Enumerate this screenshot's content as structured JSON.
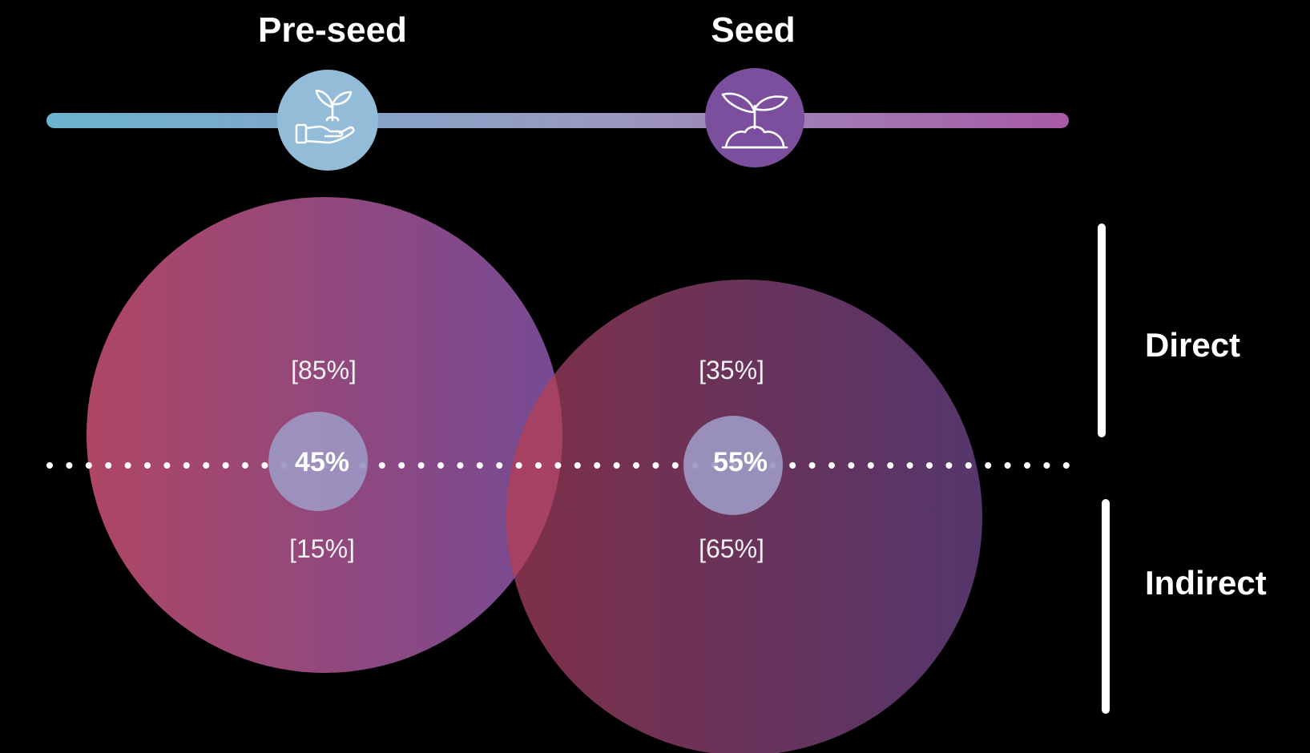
{
  "stages": [
    {
      "title": "Pre-seed",
      "icon": "hand-holding-plant-icon",
      "icon_color": "#93bcd9",
      "total": "45%",
      "direct": "[85%]",
      "indirect": "[15%]"
    },
    {
      "title": "Seed",
      "icon": "sprout-in-soil-icon",
      "icon_color": "#7b4f9e",
      "total": "55%",
      "direct": "[35%]",
      "indirect": "[65%]"
    }
  ],
  "side_labels": {
    "top": "Direct",
    "bottom": "Indirect"
  },
  "colors": {
    "background": "#000000",
    "timeline_start": "#6ab4d0",
    "timeline_mid": "#9a98c0",
    "timeline_end": "#a85aa6",
    "bubble_left": "#b84a6a",
    "bubble_right": "#7c4e9c",
    "bubble2_left": "#8c3550",
    "bubble2_right": "#5e3c78",
    "center_disc": "#9c97c2"
  }
}
